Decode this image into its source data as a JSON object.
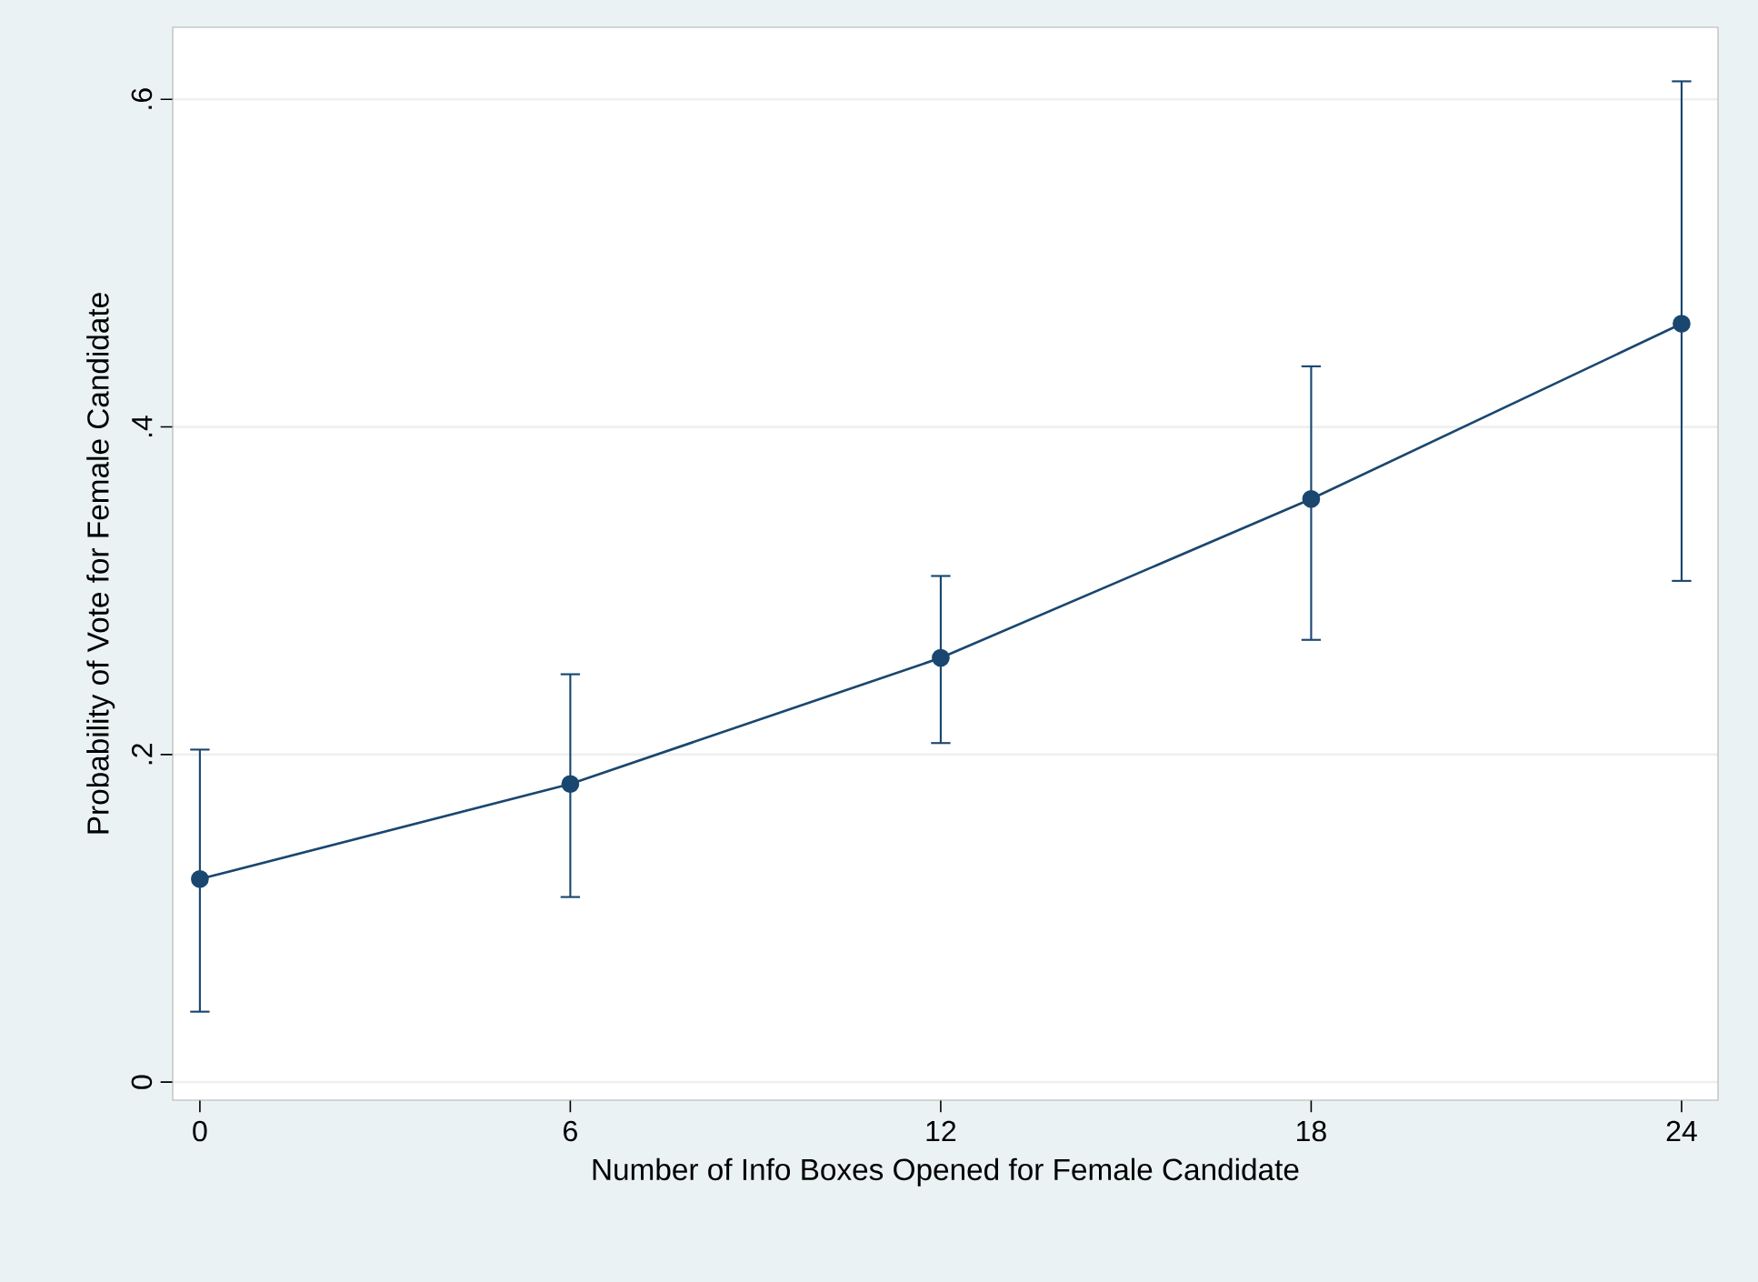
{
  "chart_data": {
    "type": "line",
    "xlabel": "Number of Info Boxes Opened for Female Candidate",
    "ylabel": "Probability of Vote for Female Candidate",
    "x": [
      0,
      6,
      12,
      18,
      24
    ],
    "series": [
      {
        "color": "#1a476f",
        "values": [
          0.124,
          0.182,
          0.259,
          0.356,
          0.463
        ],
        "errors": [
          [
            0.043,
            0.203
          ],
          [
            0.113,
            0.249
          ],
          [
            0.207,
            0.309
          ],
          [
            0.27,
            0.437
          ],
          [
            0.306,
            0.611
          ]
        ]
      }
    ],
    "xlim": [
      -0.44,
      24.59
    ],
    "ylim": [
      -0.011,
      0.644
    ],
    "xticks": [
      0,
      6,
      12,
      18,
      24
    ],
    "yticks": [
      0,
      {
        "value": 0.2,
        "label": ".2"
      },
      {
        "value": 0.4,
        "label": ".4"
      },
      {
        "value": 0.6,
        "label": ".6"
      }
    ],
    "grid": "y",
    "marker": "circle",
    "line_style": "solid"
  }
}
